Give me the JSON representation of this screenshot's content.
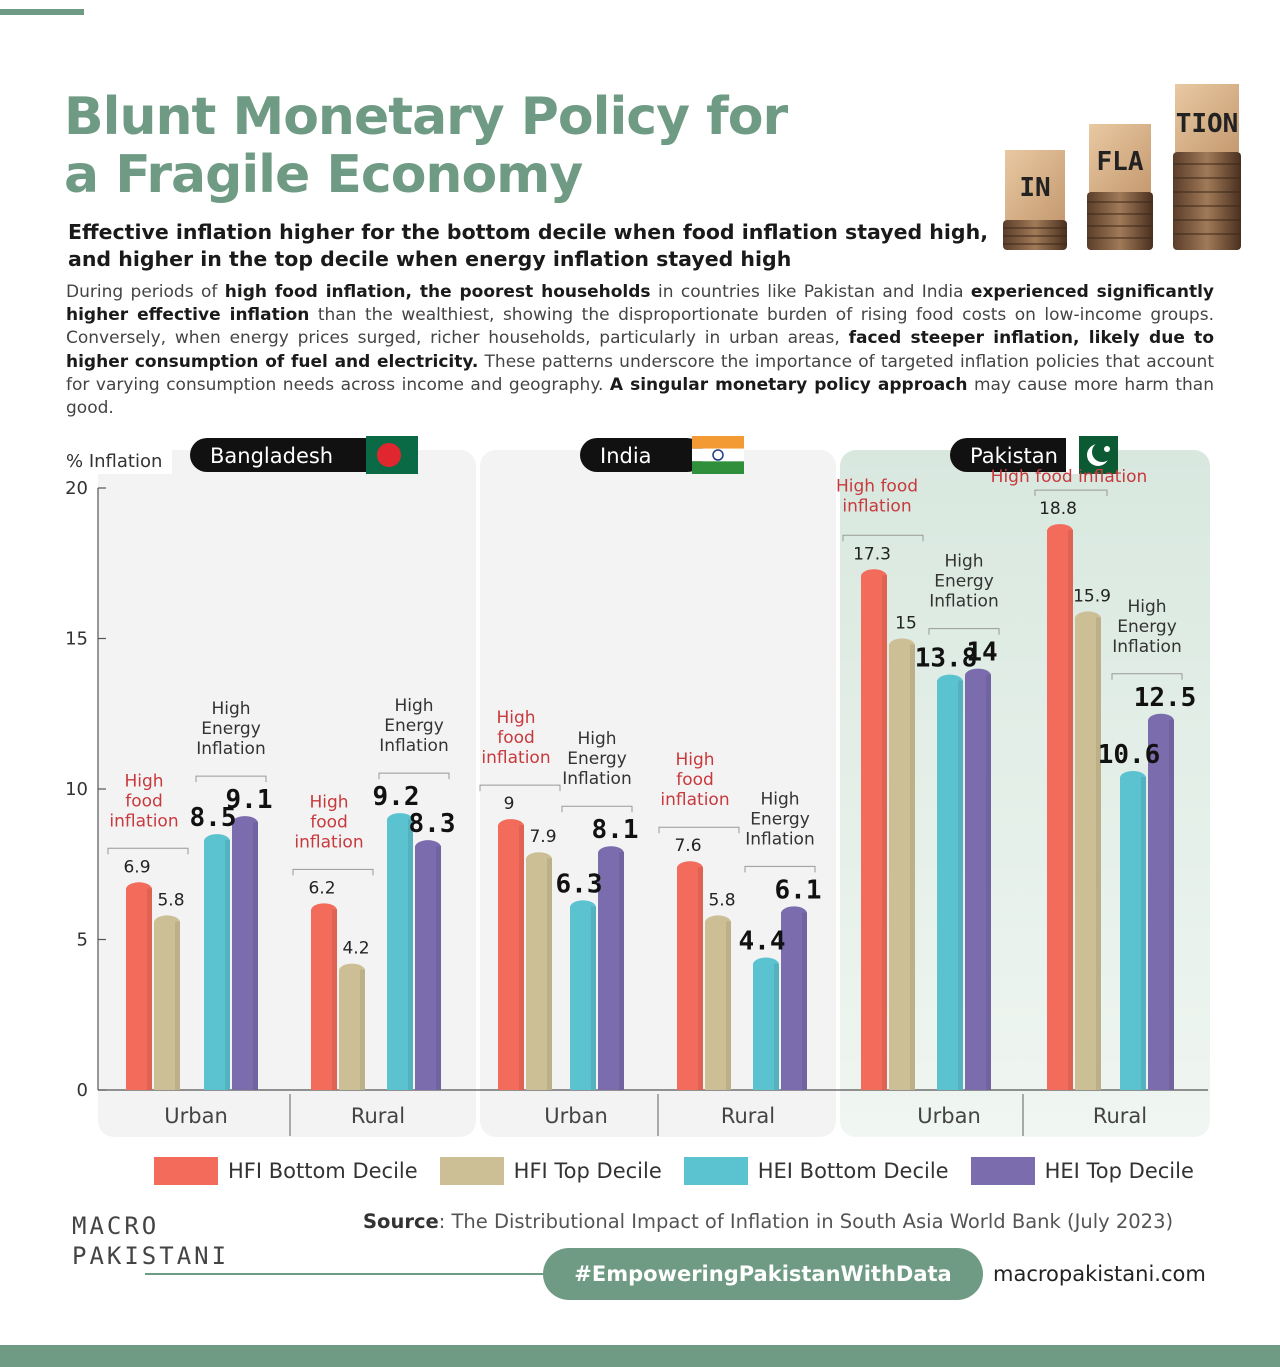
{
  "header": {
    "title_line1": "Blunt Monetary Policy for",
    "title_line2": "a Fragile Economy",
    "subtitle_line1": "Effective inflation higher for the bottom decile when food inflation stayed high,",
    "subtitle_line2": "and higher in the top decile when energy inflation stayed high",
    "body": [
      {
        "t": "During periods of ",
        "b": false
      },
      {
        "t": "high food inflation, the poorest households",
        "b": true
      },
      {
        "t": " in countries like Pakistan and India ",
        "b": false
      },
      {
        "t": "experienced significantly higher effective inflation",
        "b": true
      },
      {
        "t": " than the wealthiest, showing the disproportionate burden of rising food costs on low-income groups. Conversely, when energy prices surged, richer households, particularly in urban areas, ",
        "b": false
      },
      {
        "t": "faced steeper inflation, likely due to higher consumption of fuel and electricity.",
        "b": true
      },
      {
        "t": " These patterns underscore the importance of targeted inflation policies that account for varying consumption needs across income and geography. ",
        "b": false
      },
      {
        "t": "A singular monetary policy approach",
        "b": true
      },
      {
        "t": " may cause more harm than good.",
        "b": false
      }
    ],
    "blocks": [
      "IN",
      "FLA",
      "TION"
    ]
  },
  "colors": {
    "hfi_bottom": "#f26b5b",
    "hfi_top": "#cdbf95",
    "hei_bottom": "#5bc2cf",
    "hei_top": "#7b6cad",
    "brand": "#6f9b84",
    "annot_food": "#c8393d"
  },
  "chart_data": {
    "type": "bar",
    "ylabel": "% Inflation",
    "ylim": [
      0,
      20
    ],
    "yticks": [
      0,
      5,
      10,
      15,
      20
    ],
    "series_names": [
      "HFI Bottom Decile",
      "HFI Top Decile",
      "HEI Bottom Decile",
      "HEI Top Decile"
    ],
    "countries": [
      {
        "name": "Bangladesh",
        "groups": [
          {
            "area": "Urban",
            "hfi": [
              6.9,
              5.8
            ],
            "hei": [
              8.5,
              9.1
            ],
            "food_label": "High food inflation",
            "energy_label": "High Energy Inflation"
          },
          {
            "area": "Rural",
            "hfi": [
              6.2,
              4.2
            ],
            "hei": [
              9.2,
              8.3
            ],
            "food_label": "High food inflation",
            "energy_label": "High Energy Inflation"
          }
        ]
      },
      {
        "name": "India",
        "groups": [
          {
            "area": "Urban",
            "hfi": [
              9,
              7.9
            ],
            "hei": [
              6.3,
              8.1
            ],
            "food_label": "High food inflation",
            "energy_label": "High Energy Inflation"
          },
          {
            "area": "Rural",
            "hfi": [
              7.6,
              5.8
            ],
            "hei": [
              4.4,
              6.1
            ],
            "food_label": "High food inflation",
            "energy_label": "High Energy Inflation"
          }
        ]
      },
      {
        "name": "Pakistan",
        "groups": [
          {
            "area": "Urban",
            "hfi": [
              17.3,
              15
            ],
            "hei": [
              13.8,
              14
            ],
            "food_label": "High food inflation",
            "energy_label": "High Energy Inflation"
          },
          {
            "area": "Rural",
            "hfi": [
              18.8,
              15.9
            ],
            "hei": [
              10.6,
              12.5
            ],
            "food_label": "High food inflation",
            "energy_label": "High Energy Inflation"
          }
        ]
      }
    ]
  },
  "legend": {
    "items": [
      "HFI Bottom Decile",
      "HFI Top Decile",
      "HEI Bottom Decile",
      "HEI Top Decile"
    ]
  },
  "footer": {
    "source_label": "Source",
    "source_text": ": The Distributional Impact of Inflation in South Asia World Bank (July 2023)",
    "logo_line1": "MACRO",
    "logo_line2": "PAKISTANI",
    "hashtag": "#EmpoweringPakistanWithData",
    "website": "macropakistani.com"
  }
}
